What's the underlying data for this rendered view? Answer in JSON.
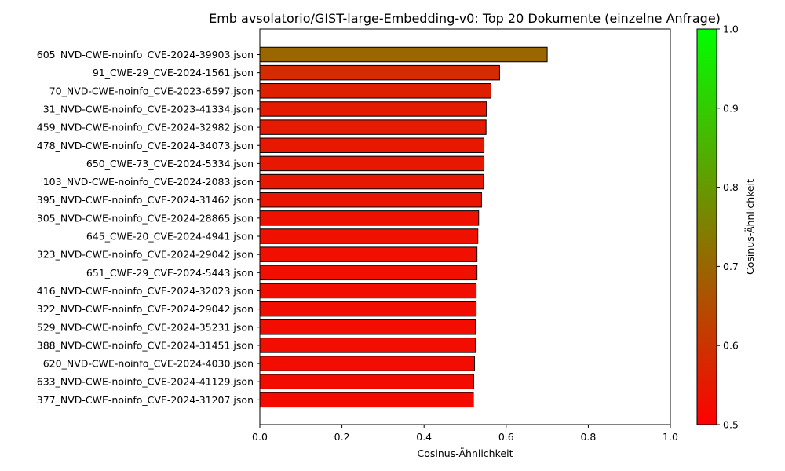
{
  "chart_data": {
    "type": "bar",
    "orientation": "horizontal",
    "title": "Emb avsolatorio/GIST-large-Embedding-v0: Top 20 Dokumente (einzelne Anfrage)",
    "xlabel": "Cosinus-Ähnlichkeit",
    "ylabel": "",
    "xlim": [
      0,
      1
    ],
    "xticks": [
      "0.0",
      "0.2",
      "0.4",
      "0.6",
      "0.8",
      "1.0"
    ],
    "xtick_values": [
      0,
      0.2,
      0.4,
      0.6,
      0.8,
      1.0
    ],
    "grid": false,
    "categories": [
      "605_NVD-CWE-noinfo_CVE-2024-39903.json",
      "91_CWE-29_CVE-2024-1561.json",
      "70_NVD-CWE-noinfo_CVE-2023-6597.json",
      "31_NVD-CWE-noinfo_CVE-2023-41334.json",
      "459_NVD-CWE-noinfo_CVE-2024-32982.json",
      "478_NVD-CWE-noinfo_CVE-2024-34073.json",
      "650_CWE-73_CVE-2024-5334.json",
      "103_NVD-CWE-noinfo_CVE-2024-2083.json",
      "395_NVD-CWE-noinfo_CVE-2024-31462.json",
      "305_NVD-CWE-noinfo_CVE-2024-28865.json",
      "645_CWE-20_CVE-2024-4941.json",
      "323_NVD-CWE-noinfo_CVE-2024-29042.json",
      "651_CWE-29_CVE-2024-5443.json",
      "416_NVD-CWE-noinfo_CVE-2024-32023.json",
      "322_NVD-CWE-noinfo_CVE-2024-29042.json",
      "529_NVD-CWE-noinfo_CVE-2024-35231.json",
      "388_NVD-CWE-noinfo_CVE-2024-31451.json",
      "620_NVD-CWE-noinfo_CVE-2024-4030.json",
      "633_NVD-CWE-noinfo_CVE-2024-41129.json",
      "377_NVD-CWE-noinfo_CVE-2024-31207.json"
    ],
    "values": [
      0.7,
      0.584,
      0.563,
      0.552,
      0.551,
      0.546,
      0.546,
      0.545,
      0.54,
      0.533,
      0.531,
      0.529,
      0.529,
      0.527,
      0.527,
      0.525,
      0.525,
      0.523,
      0.521,
      0.52
    ],
    "colorbar": {
      "label": "Cosinus-Ähnlichkeit",
      "range": [
        0.5,
        1.0
      ],
      "ticks": [
        "0.5",
        "0.6",
        "0.7",
        "0.8",
        "0.9",
        "1.0"
      ],
      "tick_values": [
        0.5,
        0.6,
        0.7,
        0.8,
        0.9,
        1.0
      ],
      "color_low": "#ff0000",
      "color_high": "#00ff00"
    },
    "bar_edge_color": "#000000"
  }
}
